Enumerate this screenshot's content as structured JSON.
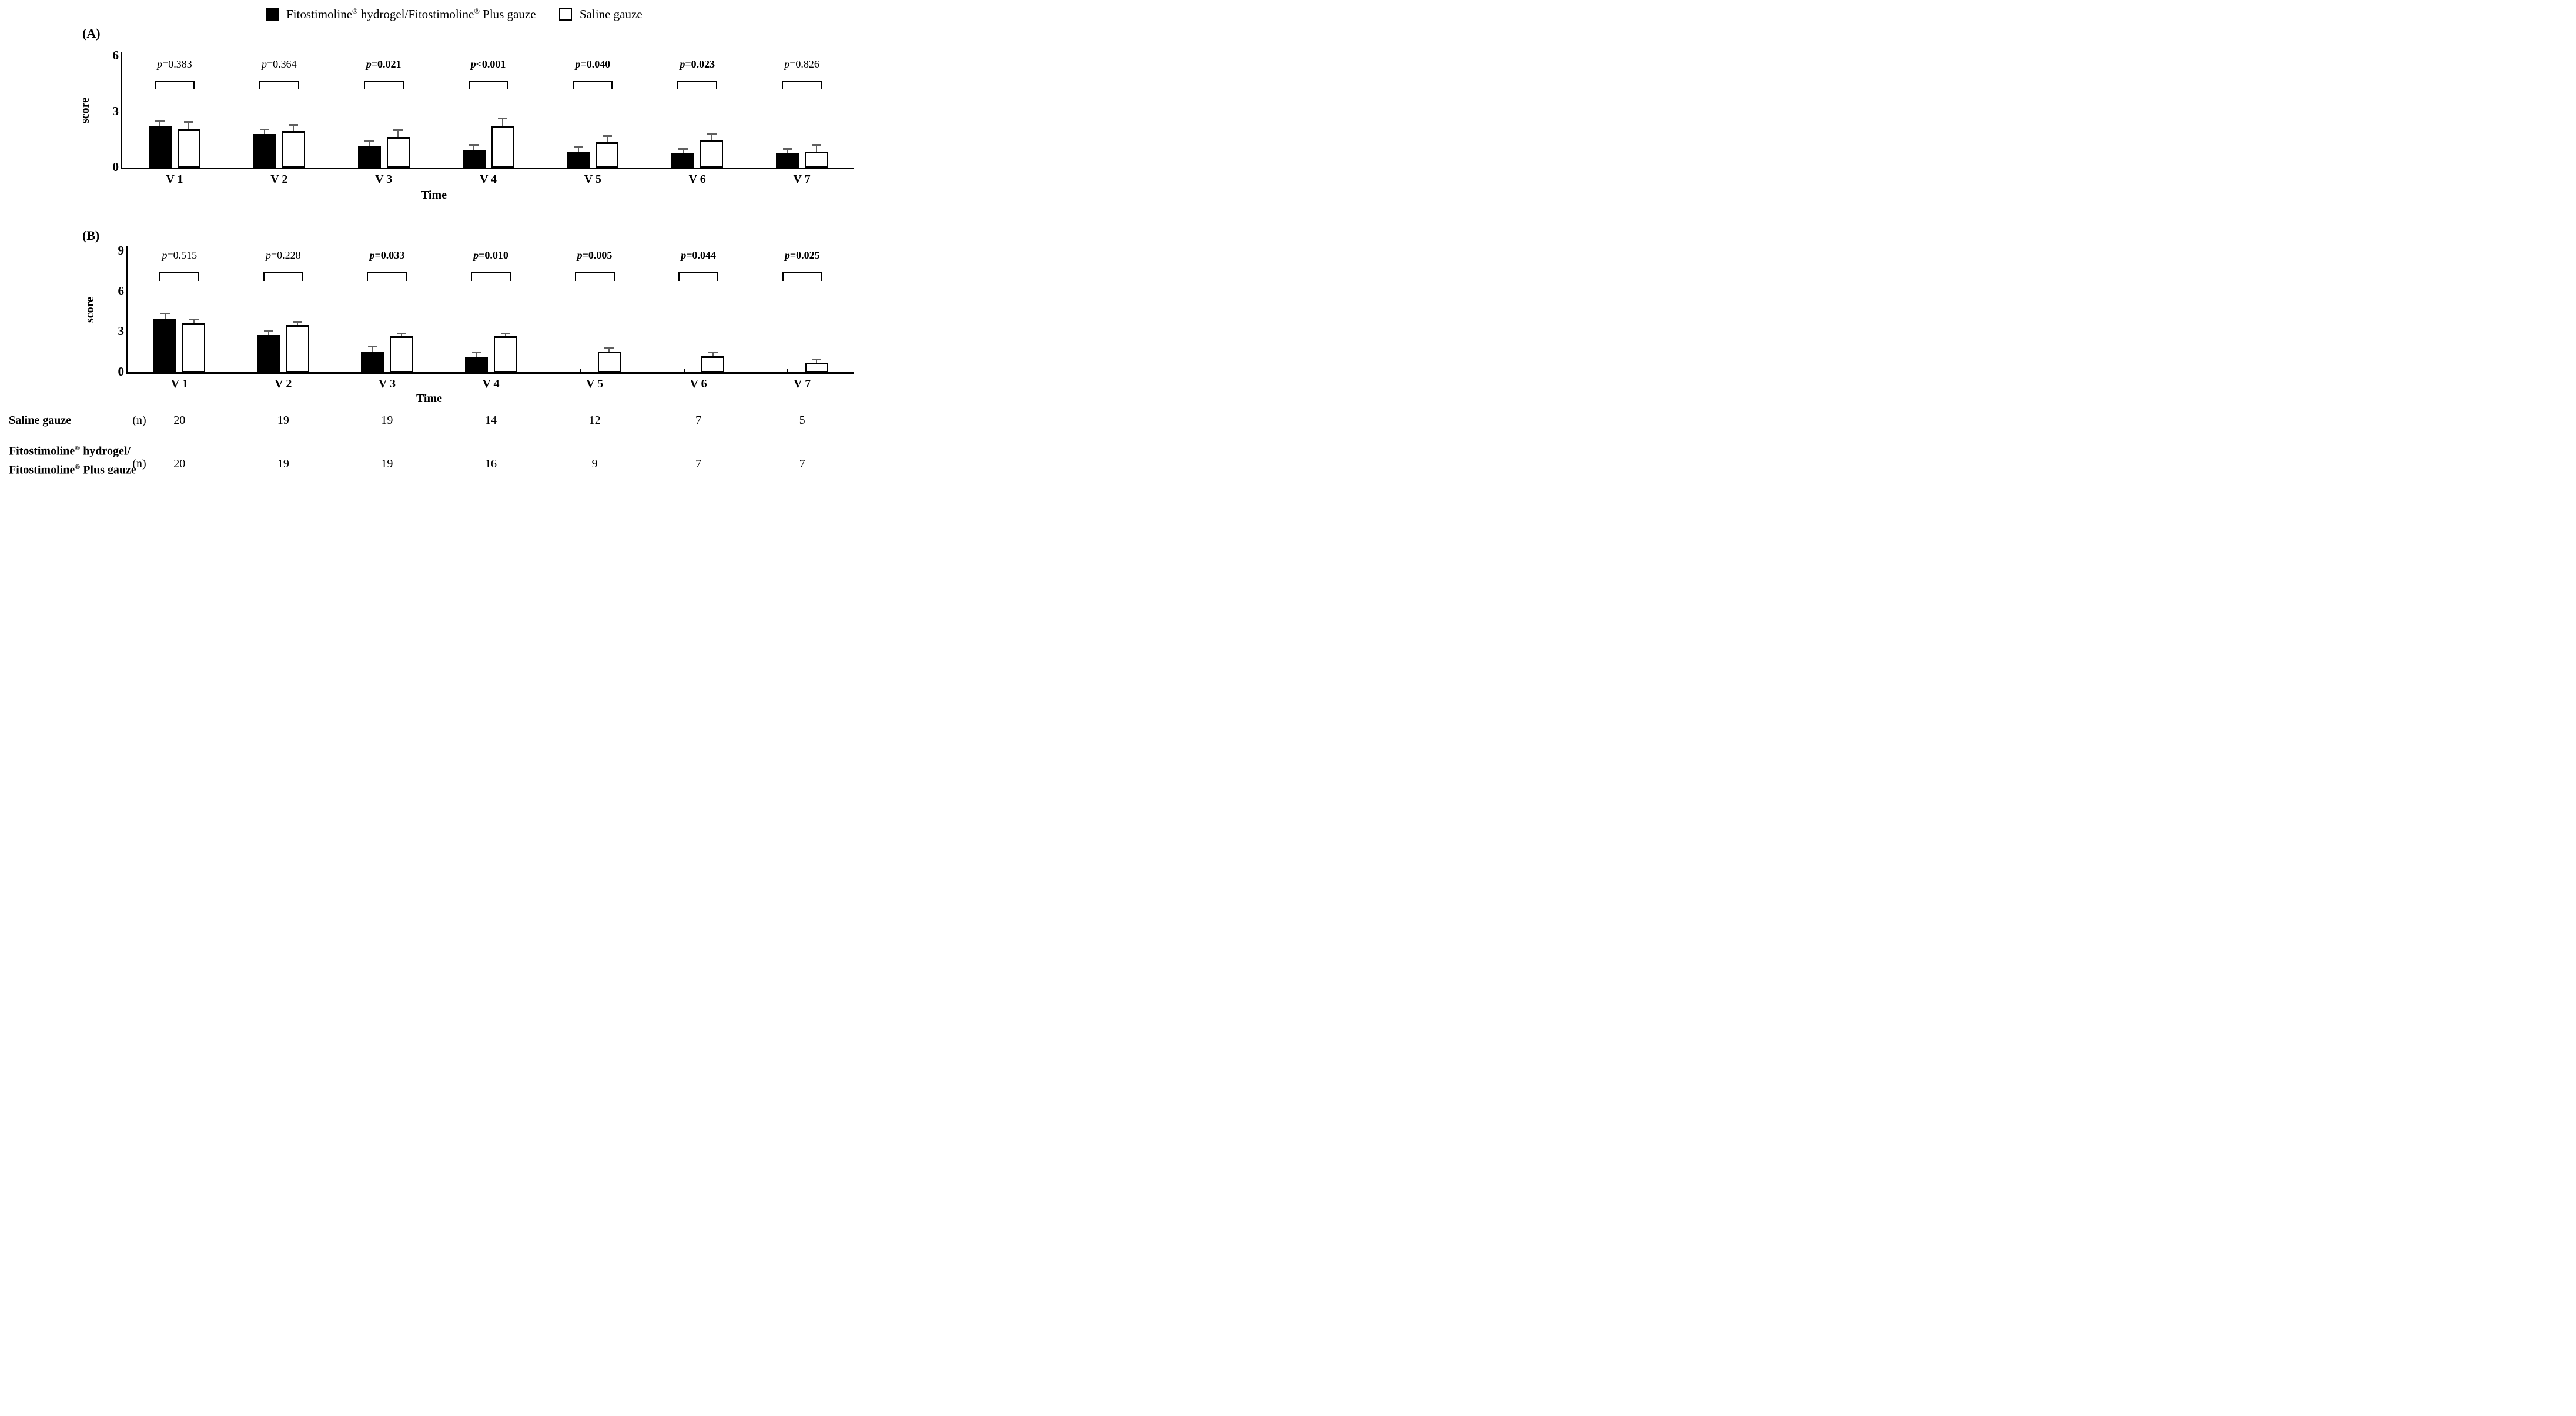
{
  "legend": {
    "items": [
      {
        "label": "Fitostimoline® hydrogel/Fitostimoline® Plus gauze",
        "swatch": "black"
      },
      {
        "label": "Saline gauze",
        "swatch": "white"
      }
    ]
  },
  "colors": {
    "bar_dark": "#000000",
    "bar_light": "#ffffff",
    "error_bar": "#606060",
    "axis": "#000000"
  },
  "chart_data": [
    {
      "type": "bar",
      "panel_label": "(A)",
      "ylabel": "score",
      "xlabel": "Time",
      "categories": [
        "V 1",
        "V 2",
        "V 3",
        "V 4",
        "V 5",
        "V 6",
        "V 7"
      ],
      "ylim": [
        0,
        6
      ],
      "yticks": [
        0,
        3,
        6
      ],
      "grid": false,
      "legend_position": "top",
      "series": [
        {
          "name": "Fitostimoline® hydrogel/Fitostimoline® Plus gauze",
          "fill": "black",
          "values": [
            2.25,
            1.8,
            1.15,
            0.95,
            0.85,
            0.75,
            0.75
          ],
          "errors_plus": [
            0.3,
            0.27,
            0.3,
            0.3,
            0.3,
            0.3,
            0.3
          ]
        },
        {
          "name": "Saline gauze",
          "fill": "white",
          "values": [
            2.05,
            1.95,
            1.65,
            2.25,
            1.35,
            1.45,
            0.85
          ],
          "errors_plus": [
            0.43,
            0.4,
            0.4,
            0.43,
            0.4,
            0.38,
            0.4
          ]
        }
      ],
      "p_values": [
        {
          "text": "p=0.383",
          "bold": false
        },
        {
          "text": "p=0.364",
          "bold": false
        },
        {
          "text": "p=0.021",
          "bold": true
        },
        {
          "text": "p<0.001",
          "bold": true
        },
        {
          "text": "p=0.040",
          "bold": true
        },
        {
          "text": "p=0.023",
          "bold": true
        },
        {
          "text": "p=0.826",
          "bold": false
        }
      ]
    },
    {
      "type": "bar",
      "panel_label": "(B)",
      "ylabel": "score",
      "xlabel": "Time",
      "categories": [
        "V 1",
        "V 2",
        "V 3",
        "V 4",
        "V 5",
        "V 6",
        "V 7"
      ],
      "ylim": [
        0,
        9
      ],
      "yticks": [
        0,
        3,
        6,
        9
      ],
      "grid": false,
      "legend_position": "top",
      "series": [
        {
          "name": "Fitostimoline® hydrogel/Fitostimoline® Plus gauze",
          "fill": "black",
          "values": [
            4.0,
            2.75,
            1.55,
            1.15,
            0,
            0,
            0
          ],
          "errors_plus": [
            0.4,
            0.42,
            0.4,
            0.38,
            0,
            0,
            0
          ]
        },
        {
          "name": "Saline gauze",
          "fill": "white",
          "values": [
            3.65,
            3.5,
            2.65,
            2.65,
            1.55,
            1.2,
            0.7
          ],
          "errors_plus": [
            0.35,
            0.3,
            0.3,
            0.3,
            0.27,
            0.32,
            0.32
          ]
        }
      ],
      "p_values": [
        {
          "text": "p=0.515",
          "bold": false
        },
        {
          "text": "p=0.228",
          "bold": false
        },
        {
          "text": "p=0.033",
          "bold": true
        },
        {
          "text": "p=0.010",
          "bold": true
        },
        {
          "text": "p=0.005",
          "bold": true
        },
        {
          "text": "p=0.044",
          "bold": true
        },
        {
          "text": "p=0.025",
          "bold": true
        }
      ]
    }
  ],
  "table": {
    "rows": [
      {
        "label_lines": [
          "Saline gauze"
        ],
        "unit": "(n)",
        "values": [
          "20",
          "19",
          "19",
          "14",
          "12",
          "7",
          "5"
        ]
      },
      {
        "label_lines": [
          "Fitostimoline® hydrogel/",
          "Fitostimoline® Plus gauze"
        ],
        "unit": "(n)",
        "values": [
          "20",
          "19",
          "19",
          "16",
          "9",
          "7",
          "7"
        ]
      }
    ]
  }
}
